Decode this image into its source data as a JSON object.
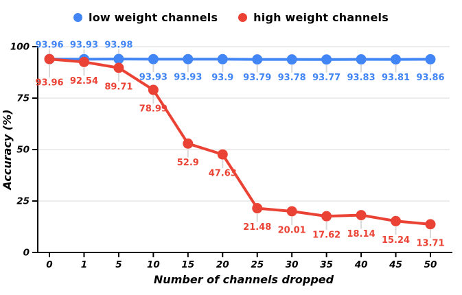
{
  "legend": {
    "position": "top"
  },
  "chart_data": {
    "type": "line",
    "title": "",
    "xlabel": "Number of channels dropped",
    "ylabel": "Accuracy (%)",
    "categories": [
      "0",
      "1",
      "5",
      "10",
      "15",
      "20",
      "25",
      "30",
      "35",
      "40",
      "45",
      "50"
    ],
    "series": [
      {
        "name": "low weight channels",
        "color": "#4285f4",
        "values": [
          93.96,
          93.93,
          93.98,
          93.93,
          93.93,
          93.9,
          93.79,
          93.78,
          93.77,
          93.83,
          93.81,
          93.86
        ]
      },
      {
        "name": "high weight channels",
        "color": "#ea4335",
        "values": [
          93.96,
          92.54,
          89.71,
          78.99,
          52.9,
          47.63,
          21.48,
          20.01,
          17.62,
          18.14,
          15.24,
          13.71
        ]
      }
    ],
    "ylim": [
      0,
      100
    ],
    "yticks": [
      0,
      25,
      50,
      75,
      100
    ],
    "grid": true,
    "data_labels": true,
    "legend_position": "top"
  },
  "colors": {
    "grid": "#dadada",
    "axis": "#000000",
    "leader": "#d9d9d9",
    "background": "#ffffff"
  }
}
